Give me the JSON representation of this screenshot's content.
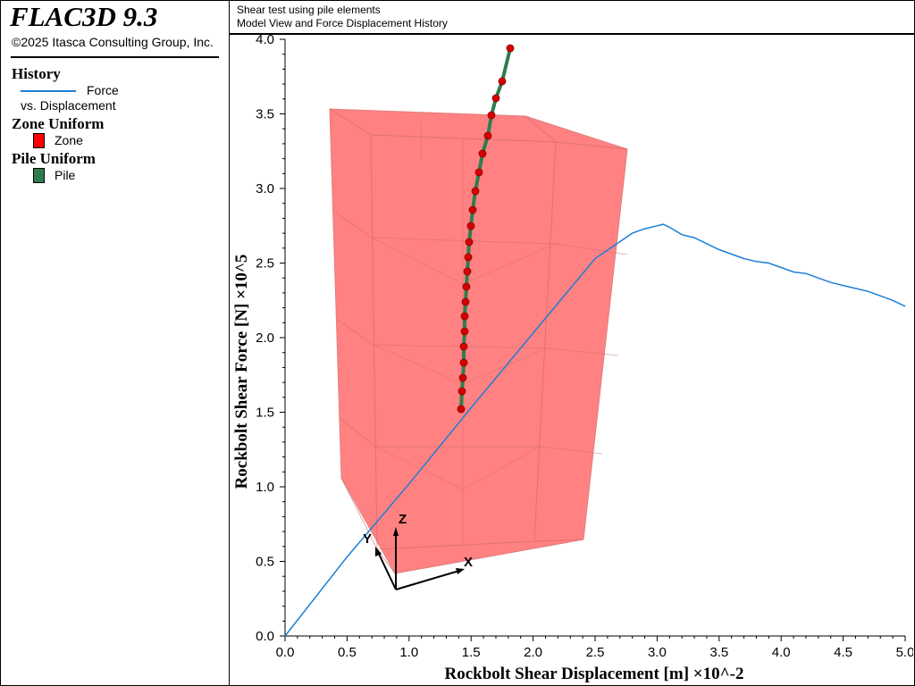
{
  "app": {
    "title": "FLAC3D 9.3",
    "copyright": "©2025 Itasca Consulting Group, Inc."
  },
  "legend": {
    "history_heading": "History",
    "history_label_1": "Force",
    "history_label_2": "vs. Displacement",
    "zone_heading": "Zone Uniform",
    "zone_label": "Zone",
    "pile_heading": "Pile Uniform",
    "pile_label": "Pile"
  },
  "header": {
    "line1": "Shear test using pile elements",
    "line2": "Model View and Force Displacement History"
  },
  "axes3d": {
    "x_label": "X",
    "y_label": "Y",
    "z_label": "Z"
  },
  "colors": {
    "history_line": "#1e7fd6",
    "zone": "#ff0000",
    "zone_fill": "#ff6b6b",
    "pile": "#2e7d4f",
    "pile_node": "#d40000"
  },
  "chart_data": {
    "type": "line",
    "title": "",
    "xlabel": "Rockbolt Shear Displacement [m] ×10^-2",
    "ylabel": "Rockbolt Shear Force [N] ×10^5",
    "xlim": [
      0,
      5.0
    ],
    "ylim": [
      0,
      4.0
    ],
    "x_ticks": [
      "0.0",
      "0.5",
      "1.0",
      "1.5",
      "2.0",
      "2.5",
      "3.0",
      "3.5",
      "4.0",
      "4.5",
      "5.0"
    ],
    "y_ticks": [
      "0.0",
      "0.5",
      "1.0",
      "1.5",
      "2.0",
      "2.5",
      "3.0",
      "3.5",
      "4.0"
    ],
    "grid": false,
    "series": [
      {
        "name": "Force vs. Displacement",
        "x": [
          0.0,
          0.5,
          1.0,
          1.5,
          2.0,
          2.5,
          2.8,
          2.9,
          3.0,
          3.05,
          3.1,
          3.2,
          3.3,
          3.4,
          3.5,
          3.6,
          3.7,
          3.8,
          3.9,
          4.0,
          4.1,
          4.2,
          4.3,
          4.4,
          4.5,
          4.6,
          4.7,
          4.8,
          4.9,
          5.0
        ],
        "y": [
          0.0,
          0.53,
          1.02,
          1.53,
          2.03,
          2.53,
          2.7,
          2.73,
          2.75,
          2.76,
          2.74,
          2.69,
          2.67,
          2.63,
          2.59,
          2.56,
          2.53,
          2.51,
          2.5,
          2.47,
          2.44,
          2.43,
          2.4,
          2.37,
          2.35,
          2.33,
          2.31,
          2.28,
          2.25,
          2.21
        ]
      }
    ]
  }
}
